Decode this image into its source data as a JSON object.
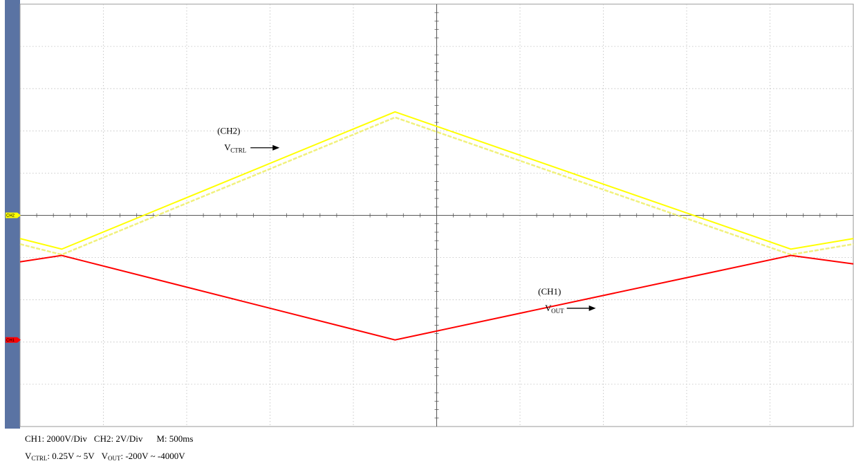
{
  "chart_data": {
    "type": "line",
    "grid": true,
    "time_per_div": "500ms",
    "x_divisions": 10,
    "y_divisions": 10,
    "x": [
      0,
      0.5,
      4.5,
      9.25,
      10
    ],
    "series": [
      {
        "channel": "CH2",
        "color": "#ffff00",
        "y_div": [
          4.45,
          4.2,
          7.45,
          4.2,
          4.45
        ],
        "marker_div": 5.0
      },
      {
        "channel": "CH1",
        "color": "#ff0000",
        "y_div": [
          3.9,
          4.05,
          2.05,
          4.05,
          3.85
        ],
        "marker_div": 2.05
      }
    ],
    "annotations": [
      {
        "channel": "(CH2)",
        "signal": "V",
        "sub": "CTRL",
        "anchor_div": [
          2.45,
          6.6
        ]
      },
      {
        "channel": "(CH1)",
        "signal": "V",
        "sub": "OUT",
        "anchor_div": [
          6.3,
          2.8
        ]
      }
    ],
    "channel_markers": [
      "CH2",
      "CH1"
    ]
  },
  "captions": {
    "ch1_scale": "CH1: 2000V/Div",
    "ch2_scale": "CH2: 2V/Div",
    "timebase": "M: 500ms",
    "vctrl_sym": "V",
    "vctrl_sub": "CTRL",
    "vctrl_range": ": 0.25V ~ 5V",
    "vout_sym": "V",
    "vout_sub": "OUT",
    "vout_range": ": -200V ~ -4000V"
  }
}
